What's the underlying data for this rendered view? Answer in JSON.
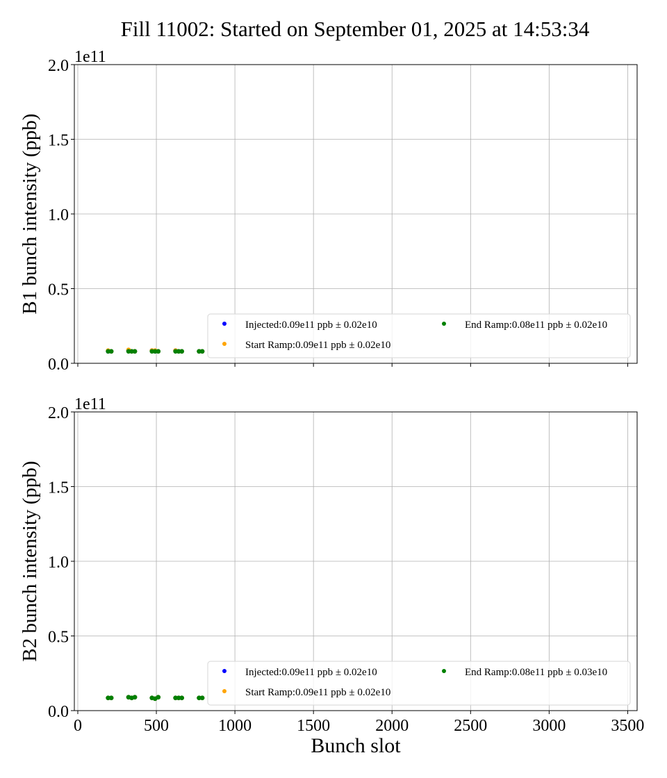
{
  "title": "Fill 11002: Started on September 01, 2025 at 14:53:34",
  "chart_data": [
    {
      "type": "scatter",
      "ylabel": "B1 bunch intensity (ppb)",
      "xlabel": "",
      "offset_text": "1e11",
      "xlim": [
        -22,
        3560
      ],
      "ylim": [
        0,
        200000000000.0
      ],
      "xticks": [
        0,
        500,
        1000,
        1500,
        2000,
        2500,
        3000,
        3500
      ],
      "xtick_labels_shown": false,
      "yticks": [
        "0.0",
        "0.5",
        "1.0",
        "1.5",
        "2.0"
      ],
      "grid": true,
      "legend_position": "lower-right",
      "x": [
        193,
        213,
        323,
        343,
        363,
        472,
        492,
        512,
        622,
        642,
        662,
        772,
        792
      ],
      "series": [
        {
          "name": "Injected:0.09e11 ppb ± 0.02e10",
          "color": "#0000ff",
          "values": [
            8000000000.0,
            8000000000.0,
            8500000000.0,
            8000000000.0,
            8000000000.0,
            8500000000.0,
            8000000000.0,
            8000000000.0,
            8500000000.0,
            8000000000.0,
            8000000000.0,
            8000000000.0,
            8000000000.0
          ]
        },
        {
          "name": "Start Ramp:0.09e11 ppb ± 0.02e10",
          "color": "#ffa500",
          "values": [
            8500000000.0,
            8000000000.0,
            9000000000.0,
            8000000000.0,
            8000000000.0,
            8500000000.0,
            8500000000.0,
            8000000000.0,
            8500000000.0,
            8000000000.0,
            8000000000.0,
            8000000000.0,
            8000000000.0
          ]
        },
        {
          "name": "End Ramp:0.08e11 ppb ± 0.02e10",
          "color": "#008000",
          "values": [
            8000000000.0,
            8000000000.0,
            8000000000.0,
            8000000000.0,
            8000000000.0,
            8000000000.0,
            8000000000.0,
            8000000000.0,
            8000000000.0,
            8000000000.0,
            8000000000.0,
            8000000000.0,
            8000000000.0
          ]
        }
      ]
    },
    {
      "type": "scatter",
      "ylabel": "B2 bunch intensity (ppb)",
      "xlabel": "Bunch slot",
      "offset_text": "1e11",
      "xlim": [
        -22,
        3560
      ],
      "ylim": [
        0,
        200000000000.0
      ],
      "xticks": [
        0,
        500,
        1000,
        1500,
        2000,
        2500,
        3000,
        3500
      ],
      "xtick_labels_shown": true,
      "yticks": [
        "0.0",
        "0.5",
        "1.0",
        "1.5",
        "2.0"
      ],
      "grid": true,
      "legend_position": "lower-right",
      "x": [
        193,
        213,
        323,
        343,
        363,
        472,
        492,
        512,
        622,
        642,
        662,
        772,
        792
      ],
      "series": [
        {
          "name": "Injected:0.09e11 ppb ± 0.02e10",
          "color": "#0000ff",
          "values": [
            8500000000.0,
            8500000000.0,
            9000000000.0,
            8500000000.0,
            9000000000.0,
            8500000000.0,
            8000000000.0,
            9000000000.0,
            8500000000.0,
            8500000000.0,
            8500000000.0,
            8500000000.0,
            8500000000.0
          ]
        },
        {
          "name": "Start Ramp:0.09e11 ppb ± 0.02e10",
          "color": "#ffa500",
          "values": [
            8500000000.0,
            8500000000.0,
            9000000000.0,
            8500000000.0,
            9000000000.0,
            8500000000.0,
            8000000000.0,
            9000000000.0,
            8500000000.0,
            8500000000.0,
            8500000000.0,
            8500000000.0,
            8500000000.0
          ]
        },
        {
          "name": "End Ramp:0.08e11 ppb ± 0.03e10",
          "color": "#008000",
          "values": [
            8500000000.0,
            8500000000.0,
            9000000000.0,
            8500000000.0,
            9000000000.0,
            8500000000.0,
            8000000000.0,
            9000000000.0,
            8500000000.0,
            8500000000.0,
            8500000000.0,
            8500000000.0,
            8500000000.0
          ]
        }
      ]
    }
  ]
}
